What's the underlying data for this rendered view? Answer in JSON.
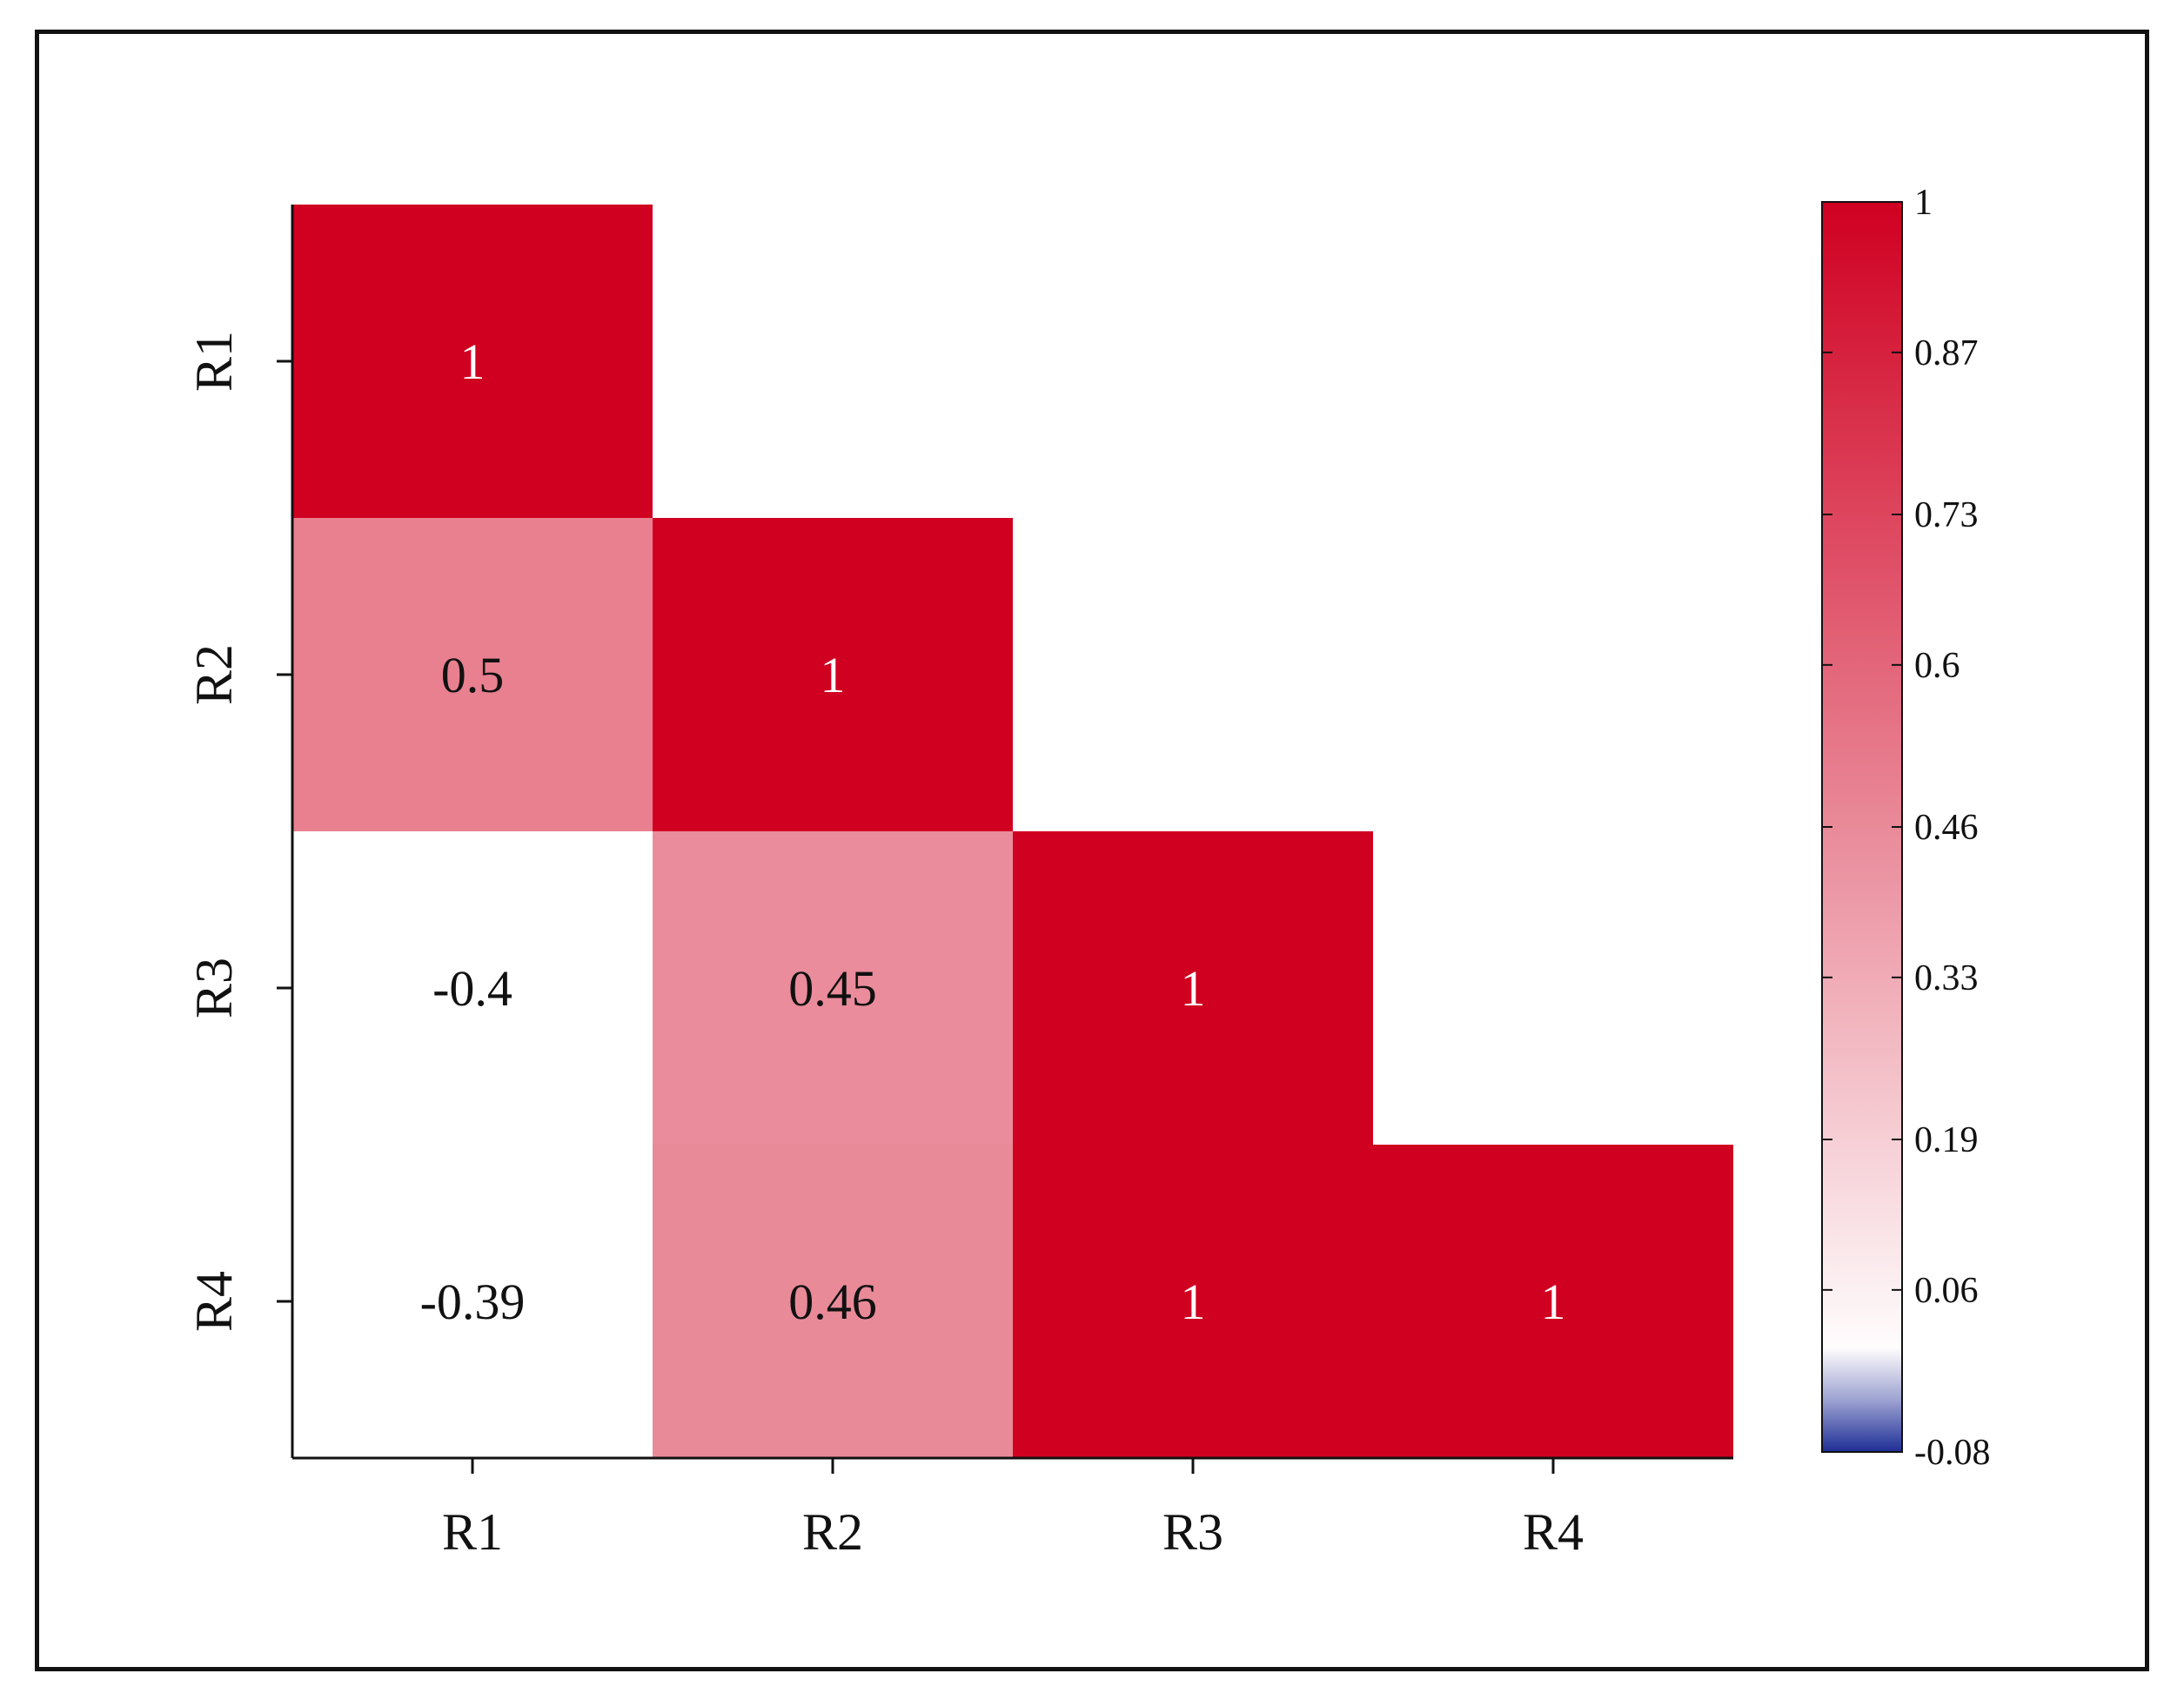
{
  "chart_data": {
    "type": "heatmap",
    "subtype": "lower-triangular correlation matrix",
    "variables": [
      "R1",
      "R2",
      "R3",
      "R4"
    ],
    "cells": [
      {
        "row": "R1",
        "col": "R1",
        "value": 1,
        "label": "1"
      },
      {
        "row": "R2",
        "col": "R1",
        "value": 0.5,
        "label": "0.5"
      },
      {
        "row": "R2",
        "col": "R2",
        "value": 1,
        "label": "1"
      },
      {
        "row": "R3",
        "col": "R1",
        "value": -0.4,
        "label": "-0.4"
      },
      {
        "row": "R3",
        "col": "R2",
        "value": 0.45,
        "label": "0.45"
      },
      {
        "row": "R3",
        "col": "R3",
        "value": 1,
        "label": "1"
      },
      {
        "row": "R4",
        "col": "R1",
        "value": -0.39,
        "label": "-0.39"
      },
      {
        "row": "R4",
        "col": "R2",
        "value": 0.46,
        "label": "0.46"
      },
      {
        "row": "R4",
        "col": "R3",
        "value": 1,
        "label": "1"
      },
      {
        "row": "R4",
        "col": "R4",
        "value": 1,
        "label": "1"
      }
    ],
    "colorbar": {
      "range": [
        -0.08,
        1
      ],
      "ticks": [
        "1",
        "0.87",
        "0.73",
        "0.6",
        "0.46",
        "0.33",
        "0.19",
        "0.06",
        "-0.08"
      ],
      "tick_values": [
        1,
        0.87,
        0.73,
        0.6,
        0.46,
        0.33,
        0.19,
        0.06,
        -0.08
      ],
      "colors": {
        "high": "#d00021",
        "zero": "#ffffff",
        "low": "#1e2d96"
      },
      "placement": "right"
    },
    "colors": {
      "label_on_dark": "#ffffff",
      "label_on_light": "#111111",
      "axis": "#111111"
    },
    "title": "",
    "xlabel": "",
    "ylabel": ""
  }
}
